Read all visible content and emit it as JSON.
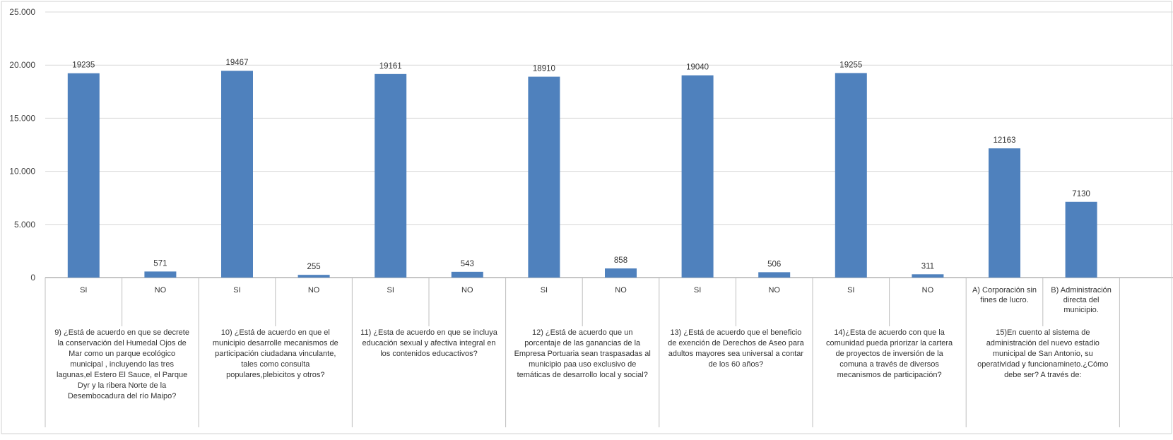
{
  "chart_data": {
    "type": "bar",
    "ylim": [
      0,
      25000
    ],
    "yticks": [
      0,
      5000,
      10000,
      15000,
      20000,
      25000
    ],
    "ytick_labels": [
      "0",
      "5.000",
      "10.000",
      "15.000",
      "20.000",
      "25.000"
    ],
    "grid": true,
    "bar_color": "#4F81BD",
    "categories": [
      "SI",
      "NO",
      "SI",
      "NO",
      "SI",
      "NO",
      "SI",
      "NO",
      "SI",
      "NO",
      "SI",
      "NO",
      "A) Corporación sin fines de lucro.",
      "B) Administración directa del municipio."
    ],
    "values": [
      19235,
      571,
      19467,
      255,
      19161,
      543,
      18910,
      858,
      19040,
      506,
      19255,
      311,
      12163,
      7130
    ],
    "data_labels": [
      "19235",
      "571",
      "19467",
      "255",
      "19161",
      "543",
      "18910",
      "858",
      "19040",
      "506",
      "19255",
      "311",
      "12163",
      "7130"
    ],
    "category_lines": [
      [
        "SI"
      ],
      [
        "NO"
      ],
      [
        "SI"
      ],
      [
        "NO"
      ],
      [
        "SI"
      ],
      [
        "NO"
      ],
      [
        "SI"
      ],
      [
        "NO"
      ],
      [
        "SI"
      ],
      [
        "NO"
      ],
      [
        "SI"
      ],
      [
        "NO"
      ],
      [
        "A) Corporación sin",
        "fines de lucro."
      ],
      [
        "B) Administración",
        "directa del",
        "municipio."
      ]
    ],
    "groups": [
      {
        "label": "9) ¿Está de acuerdo en que se decrete la conservación del Humedal Ojos de Mar como un parque ecológico municipal , incluyendo las tres lagunas,el Estero El Sauce, el Parque Dyr y la ribera Norte de la Desembocadura del río Maipo?",
        "lines": [
          "9) ¿Está de acuerdo en que se decrete",
          "la conservación del Humedal Ojos de",
          "Mar como un parque ecológico",
          "municipal , incluyendo las tres",
          "lagunas,el Estero El Sauce, el Parque",
          "Dyr y la ribera Norte de la",
          "Desembocadura del río Maipo?"
        ]
      },
      {
        "label": "10) ¿Está de acuerdo en que el municipio desarrolle mecanismos de participación ciudadana vinculante, tales como consulta populares,plebicitos y otros?",
        "lines": [
          "10) ¿Está de acuerdo en que el",
          "municipio desarrolle mecanismos de",
          "participación ciudadana vinculante,",
          "tales como consulta",
          "populares,plebicitos y otros?"
        ]
      },
      {
        "label": "11) ¿Esta de acuerdo en que se incluya educación sexual y afectiva integral en los contenidos educactivos?",
        "lines": [
          "11) ¿Esta de acuerdo en que se incluya",
          "educación sexual y afectiva integral en",
          "los contenidos educactivos?"
        ]
      },
      {
        "label": "12) ¿Está de acuerdo que un porcentaje de las ganancias de la Empresa Portuaria sean traspasadas al municipio paa uso exclusivo de temáticas de desarrollo local y social?",
        "lines": [
          "12) ¿Está de acuerdo que un",
          "porcentaje de las ganancias de la",
          "Empresa Portuaria sean traspasadas al",
          "municipio paa uso exclusivo de",
          "temáticas de desarrollo local y social?"
        ]
      },
      {
        "label": "13) ¿Está de acuerdo que el beneficio de exención de Derechos de Aseo para adultos mayores sea universal a contar de los 60 años?",
        "lines": [
          "13) ¿Está de acuerdo que el beneficio",
          "de exención de Derechos de Aseo para",
          "adultos mayores sea universal a contar",
          "de los 60 años?"
        ]
      },
      {
        "label": "14)¿Esta de acuerdo con que la comunidad pueda priorizar la cartera de proyectos de inversión de la comuna a través de diversos mecanismos de participación?",
        "lines": [
          "14)¿Esta de acuerdo con que la",
          "comunidad pueda priorizar la cartera",
          "de proyectos de inversión de la",
          "comuna a través de diversos",
          "mecanismos de participación?"
        ]
      },
      {
        "label": "15)En cuento al sistema de administración del nuevo estadio municipal de San Antonio, su operatividad y funcionamineto.¿Cómo debe ser? A través de:",
        "lines": [
          "15)En cuento al sistema de",
          "administración del nuevo estadio",
          "municipal de San Antonio, su",
          "operatividad y funcionamineto.¿Cómo",
          "debe ser? A través de:"
        ]
      }
    ]
  }
}
